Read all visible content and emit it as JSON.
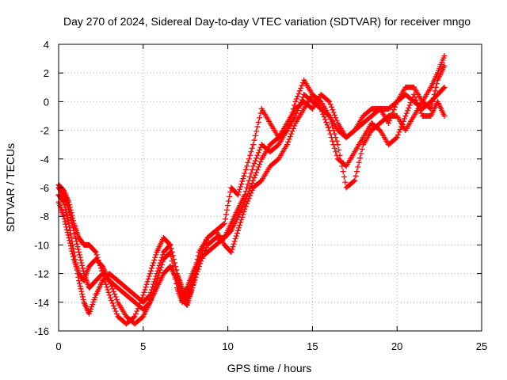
{
  "chart_data": {
    "type": "scatter",
    "title": "Day 270 of 2024, Sidereal Day-to-day VTEC variation (SDTVAR) for receiver mngo",
    "xlabel": "GPS time / hours",
    "ylabel": "SDTVAR / TECUs",
    "xlim": [
      0,
      25
    ],
    "ylim": [
      -16,
      4
    ],
    "xticks": [
      0,
      5,
      10,
      15,
      20,
      25
    ],
    "yticks": [
      -16,
      -14,
      -12,
      -10,
      -8,
      -6,
      -4,
      -2,
      0,
      2,
      4
    ],
    "grid": true,
    "marker": "+",
    "colors": {
      "series": "#ff0000",
      "grid": "#b0b0b0",
      "axis": "#000000"
    },
    "series": [
      {
        "x": [
          0.0,
          0.3,
          0.6,
          0.9,
          1.2,
          1.5,
          1.8,
          2.2,
          2.6,
          3.0,
          3.5,
          4.0,
          4.5,
          5.0,
          5.4,
          5.8,
          6.2,
          6.6,
          7.0,
          7.3,
          7.6,
          7.9,
          8.3,
          8.8,
          9.3,
          9.8,
          10.2,
          10.6,
          11.0,
          11.5,
          12.0,
          12.5,
          13.0,
          13.5,
          14.0,
          14.5,
          15.0,
          15.5,
          16.0,
          16.5,
          17.0,
          17.5,
          18.0,
          18.5,
          19.0,
          19.5,
          20.0,
          20.5,
          21.0,
          21.5,
          22.0,
          22.4,
          22.8
        ],
        "y": [
          -6.0,
          -6.5,
          -7.5,
          -9.0,
          -10.5,
          -12.0,
          -13.0,
          -12.5,
          -12.0,
          -12.5,
          -13.0,
          -13.5,
          -14.0,
          -14.5,
          -14.0,
          -13.0,
          -12.0,
          -11.5,
          -12.5,
          -13.5,
          -13.0,
          -12.0,
          -11.0,
          -10.5,
          -10.0,
          -9.5,
          -9.0,
          -8.0,
          -7.0,
          -5.5,
          -4.0,
          -3.0,
          -2.5,
          -2.0,
          -1.0,
          0.5,
          0.0,
          -0.5,
          -1.0,
          -2.0,
          -2.5,
          -2.0,
          -1.5,
          -1.0,
          -0.5,
          -0.5,
          0.0,
          0.5,
          0.0,
          -0.5,
          0.0,
          0.5,
          1.0
        ]
      },
      {
        "x": [
          0.0,
          0.3,
          0.6,
          0.9,
          1.2,
          1.5,
          1.8,
          2.2,
          2.6,
          3.0,
          3.5,
          4.0,
          4.5,
          5.0,
          5.4,
          5.8,
          6.2,
          6.6,
          7.0,
          7.3,
          7.6,
          7.9,
          8.3,
          8.8,
          9.3,
          9.8,
          10.2,
          10.6,
          11.0,
          11.5,
          12.0,
          12.5,
          13.0,
          13.5,
          14.0,
          14.5,
          15.0,
          15.5,
          16.0,
          16.5,
          17.0,
          17.5,
          18.0,
          18.5,
          19.0,
          19.5,
          20.0,
          20.5,
          21.0,
          21.5,
          22.0,
          22.4,
          22.8
        ],
        "y": [
          -6.5,
          -7.0,
          -8.5,
          -10.5,
          -12.5,
          -14.0,
          -14.8,
          -13.5,
          -12.5,
          -12.0,
          -12.5,
          -13.0,
          -13.5,
          -14.0,
          -13.5,
          -12.0,
          -10.5,
          -10.0,
          -12.0,
          -13.0,
          -14.0,
          -13.0,
          -11.5,
          -10.0,
          -9.5,
          -9.5,
          -8.5,
          -7.5,
          -6.5,
          -4.5,
          -3.0,
          -3.5,
          -3.0,
          -2.0,
          0.0,
          1.5,
          0.5,
          0.0,
          -1.0,
          -3.0,
          -6.0,
          -5.5,
          -3.0,
          -2.0,
          -1.5,
          -1.0,
          -1.0,
          -2.0,
          -1.0,
          0.0,
          -0.5,
          1.5,
          2.5
        ]
      },
      {
        "x": [
          0.0,
          0.3,
          0.6,
          0.9,
          1.2,
          1.5,
          1.8,
          2.2,
          2.6,
          3.0,
          3.5,
          4.0,
          4.5,
          5.0,
          5.4,
          5.8,
          6.2,
          6.6,
          7.0,
          7.3,
          7.6,
          7.9,
          8.3,
          8.8,
          9.3,
          9.8,
          10.2,
          10.6,
          11.0,
          11.5,
          12.0,
          12.5,
          13.0,
          13.5,
          14.0,
          14.5,
          15.0,
          15.5,
          16.0,
          16.5,
          17.0,
          17.5,
          18.0,
          18.5,
          19.0,
          19.5,
          20.0,
          20.5,
          21.0,
          21.5,
          22.0,
          22.4,
          22.8
        ],
        "y": [
          -7.0,
          -8.0,
          -9.5,
          -11.0,
          -12.0,
          -12.5,
          -11.5,
          -11.0,
          -11.5,
          -12.5,
          -14.0,
          -15.0,
          -15.5,
          -15.0,
          -14.0,
          -12.5,
          -11.0,
          -10.5,
          -13.0,
          -14.0,
          -13.5,
          -12.5,
          -10.5,
          -9.5,
          -9.0,
          -10.0,
          -10.5,
          -9.0,
          -7.5,
          -6.0,
          -5.5,
          -4.5,
          -4.0,
          -3.0,
          -1.5,
          -0.5,
          0.5,
          -0.5,
          -2.0,
          -4.0,
          -4.5,
          -3.5,
          -2.5,
          -1.5,
          -2.0,
          -3.0,
          -2.5,
          -1.0,
          0.5,
          -1.0,
          -1.0,
          0.0,
          -1.0
        ]
      },
      {
        "x": [
          0.0,
          0.3,
          0.6,
          0.9,
          1.2,
          1.5,
          1.8,
          2.2,
          2.6,
          3.0,
          3.5,
          4.0,
          4.5,
          5.0,
          5.4,
          5.8,
          6.2,
          6.6,
          7.0,
          7.3,
          7.6,
          7.9,
          8.3,
          8.8,
          9.3,
          9.8,
          10.2,
          10.6,
          11.0,
          11.5,
          12.0,
          12.5,
          13.0,
          13.5,
          14.0,
          14.5,
          15.0,
          15.5,
          16.0,
          16.5,
          17.0,
          17.5,
          18.0,
          18.5,
          19.0,
          19.5,
          20.0,
          20.5,
          21.0,
          21.5,
          22.0,
          22.4,
          22.8
        ],
        "y": [
          -5.8,
          -6.2,
          -7.0,
          -8.5,
          -9.5,
          -10.0,
          -10.0,
          -10.5,
          -12.0,
          -13.5,
          -15.0,
          -15.5,
          -15.0,
          -13.5,
          -12.0,
          -10.5,
          -9.5,
          -10.0,
          -12.0,
          -13.8,
          -14.2,
          -13.0,
          -11.0,
          -9.5,
          -9.0,
          -8.5,
          -6.0,
          -6.5,
          -5.0,
          -3.0,
          -0.5,
          -1.5,
          -2.5,
          -1.5,
          -0.5,
          0.0,
          -0.5,
          0.5,
          0.0,
          -1.5,
          -2.5,
          -2.0,
          -1.0,
          -0.5,
          -0.5,
          -1.5,
          0.0,
          1.0,
          1.0,
          0.0,
          1.0,
          2.0,
          3.2
        ]
      }
    ]
  }
}
